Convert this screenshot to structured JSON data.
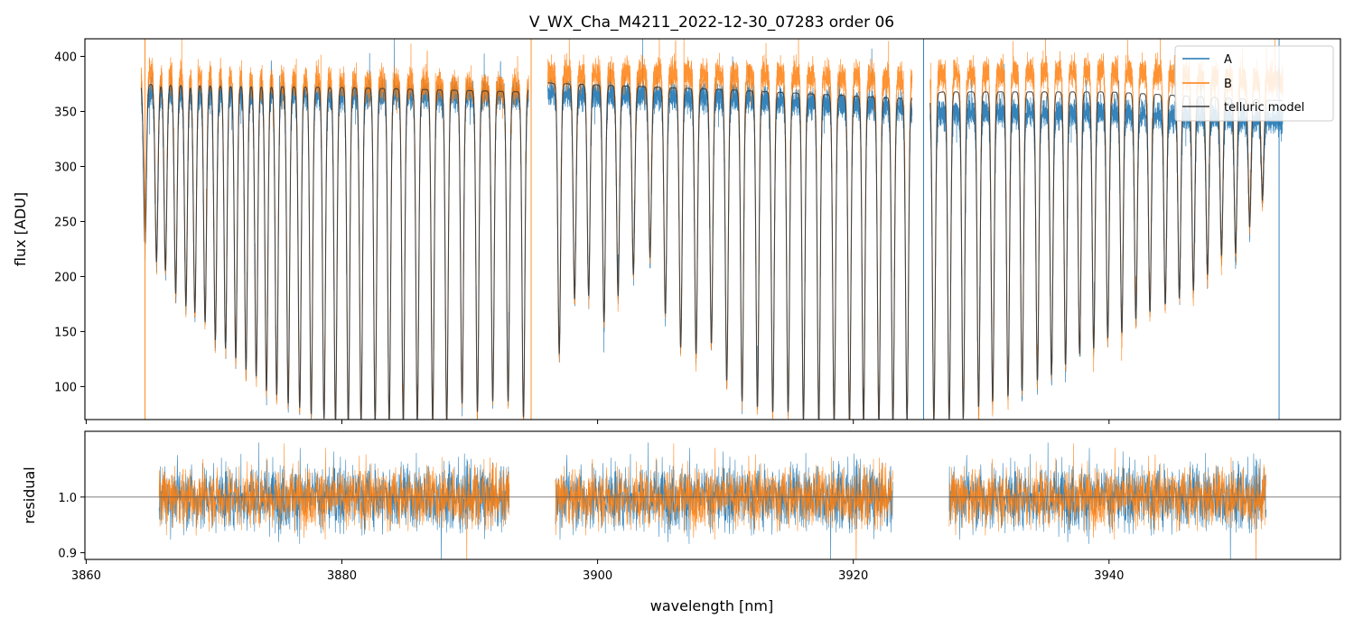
{
  "chart_data": [
    {
      "type": "line",
      "panel": "top",
      "title": "V_WX_Cha_M4211_2022-12-30_07283  order 06",
      "xlabel": "",
      "ylabel": "flux [ADU]",
      "xlim": [
        3859.9,
        3958.1
      ],
      "ylim": [
        70,
        416
      ],
      "yticks": [
        100,
        150,
        200,
        250,
        300,
        350,
        400
      ],
      "legend_position": "top-right",
      "series": [
        {
          "name": "A",
          "color": "#1f77b4",
          "continuum": [
            {
              "x": 3865,
              "y": 368
            },
            {
              "x": 3880,
              "y": 366
            },
            {
              "x": 3894,
              "y": 365
            },
            {
              "x": 3896,
              "y": 368
            },
            {
              "x": 3910,
              "y": 363
            },
            {
              "x": 3924,
              "y": 355
            },
            {
              "x": 3927,
              "y": 350
            },
            {
              "x": 3940,
              "y": 350
            },
            {
              "x": 3953,
              "y": 343
            }
          ]
        },
        {
          "name": "B",
          "color": "#ff7f0e",
          "continuum": [
            {
              "x": 3865,
              "y": 384
            },
            {
              "x": 3880,
              "y": 378
            },
            {
              "x": 3894,
              "y": 372
            },
            {
              "x": 3896,
              "y": 384
            },
            {
              "x": 3910,
              "y": 385
            },
            {
              "x": 3924,
              "y": 380
            },
            {
              "x": 3927,
              "y": 385
            },
            {
              "x": 3940,
              "y": 388
            },
            {
              "x": 3953,
              "y": 378
            }
          ]
        },
        {
          "name": "telluric model",
          "color": "#3a3a3a",
          "continuum": [
            {
              "x": 3865,
              "y": 375
            },
            {
              "x": 3880,
              "y": 372
            },
            {
              "x": 3894,
              "y": 368
            },
            {
              "x": 3896,
              "y": 376
            },
            {
              "x": 3910,
              "y": 370
            },
            {
              "x": 3924,
              "y": 362
            },
            {
              "x": 3927,
              "y": 368
            },
            {
              "x": 3940,
              "y": 368
            },
            {
              "x": 3953,
              "y": 360
            }
          ]
        }
      ],
      "absorption_lines": [
        {
          "x": 3864.6,
          "depth": 240
        },
        {
          "x": 3865.5,
          "depth": 222
        },
        {
          "x": 3866.2,
          "depth": 214
        },
        {
          "x": 3867.0,
          "depth": 192
        },
        {
          "x": 3867.8,
          "depth": 180
        },
        {
          "x": 3868.5,
          "depth": 174
        },
        {
          "x": 3869.3,
          "depth": 165
        },
        {
          "x": 3870.1,
          "depth": 148
        },
        {
          "x": 3870.9,
          "depth": 140
        },
        {
          "x": 3871.7,
          "depth": 131
        },
        {
          "x": 3872.5,
          "depth": 120
        },
        {
          "x": 3873.3,
          "depth": 114
        },
        {
          "x": 3874.1,
          "depth": 100
        },
        {
          "x": 3874.9,
          "depth": 96
        },
        {
          "x": 3875.8,
          "depth": 88
        },
        {
          "x": 3876.7,
          "depth": 84
        },
        {
          "x": 3877.6,
          "depth": 78
        },
        {
          "x": 3878.6,
          "depth": 74
        },
        {
          "x": 3879.5,
          "depth": 70
        },
        {
          "x": 3880.5,
          "depth": 70
        },
        {
          "x": 3881.5,
          "depth": 70
        },
        {
          "x": 3882.6,
          "depth": 70
        },
        {
          "x": 3883.7,
          "depth": 70
        },
        {
          "x": 3884.8,
          "depth": 70
        },
        {
          "x": 3885.9,
          "depth": 70
        },
        {
          "x": 3887.1,
          "depth": 70
        },
        {
          "x": 3888.2,
          "depth": 70
        },
        {
          "x": 3889.4,
          "depth": 88
        },
        {
          "x": 3890.6,
          "depth": 80
        },
        {
          "x": 3891.8,
          "depth": 90
        },
        {
          "x": 3893.0,
          "depth": 90
        },
        {
          "x": 3894.2,
          "depth": 75
        },
        {
          "x": 3897.0,
          "depth": 135
        },
        {
          "x": 3898.2,
          "depth": 187
        },
        {
          "x": 3899.3,
          "depth": 190
        },
        {
          "x": 3900.5,
          "depth": 165
        },
        {
          "x": 3901.6,
          "depth": 190
        },
        {
          "x": 3902.8,
          "depth": 210
        },
        {
          "x": 3904.1,
          "depth": 226
        },
        {
          "x": 3905.3,
          "depth": 173
        },
        {
          "x": 3906.5,
          "depth": 141
        },
        {
          "x": 3907.7,
          "depth": 135
        },
        {
          "x": 3908.9,
          "depth": 145
        },
        {
          "x": 3910.1,
          "depth": 110
        },
        {
          "x": 3911.3,
          "depth": 90
        },
        {
          "x": 3912.5,
          "depth": 85
        },
        {
          "x": 3913.7,
          "depth": 80
        },
        {
          "x": 3914.9,
          "depth": 80
        },
        {
          "x": 3916.1,
          "depth": 72
        },
        {
          "x": 3917.3,
          "depth": 70
        },
        {
          "x": 3918.5,
          "depth": 70
        },
        {
          "x": 3919.7,
          "depth": 70
        },
        {
          "x": 3920.8,
          "depth": 70
        },
        {
          "x": 3922.0,
          "depth": 70
        },
        {
          "x": 3923.1,
          "depth": 70
        },
        {
          "x": 3924.2,
          "depth": 72
        },
        {
          "x": 3926.3,
          "depth": 72
        },
        {
          "x": 3927.5,
          "depth": 72
        },
        {
          "x": 3928.6,
          "depth": 74
        },
        {
          "x": 3929.8,
          "depth": 85
        },
        {
          "x": 3930.9,
          "depth": 90
        },
        {
          "x": 3932.1,
          "depth": 95
        },
        {
          "x": 3933.2,
          "depth": 100
        },
        {
          "x": 3934.4,
          "depth": 110
        },
        {
          "x": 3935.5,
          "depth": 115
        },
        {
          "x": 3936.6,
          "depth": 125
        },
        {
          "x": 3937.7,
          "depth": 135
        },
        {
          "x": 3938.8,
          "depth": 140
        },
        {
          "x": 3939.9,
          "depth": 150
        },
        {
          "x": 3941.0,
          "depth": 155
        },
        {
          "x": 3942.1,
          "depth": 168
        },
        {
          "x": 3943.2,
          "depth": 175
        },
        {
          "x": 3944.4,
          "depth": 182
        },
        {
          "x": 3945.5,
          "depth": 188
        },
        {
          "x": 3946.6,
          "depth": 195
        },
        {
          "x": 3947.7,
          "depth": 210
        },
        {
          "x": 3948.8,
          "depth": 228
        },
        {
          "x": 3949.9,
          "depth": 230
        },
        {
          "x": 3951.0,
          "depth": 255
        },
        {
          "x": 3952.0,
          "depth": 280
        }
      ]
    },
    {
      "type": "line",
      "panel": "bottom",
      "title": "",
      "xlabel": "wavelength [nm]",
      "ylabel": "residual",
      "xlim": [
        3859.9,
        3958.1
      ],
      "ylim": [
        0.888,
        1.118
      ],
      "xticks": [
        3860,
        3880,
        3900,
        3920,
        3940
      ],
      "yticks": [
        0.9,
        1.0
      ],
      "reference_line": 1.0,
      "segments": [
        [
          3865.7,
          3893.1
        ],
        [
          3896.7,
          3923.1
        ],
        [
          3927.5,
          3952.3
        ]
      ],
      "noise_std": {
        "A": 0.042,
        "B": 0.038
      },
      "series": [
        {
          "name": "A",
          "color": "#1f77b4"
        },
        {
          "name": "B",
          "color": "#ff7f0e"
        }
      ]
    }
  ],
  "tick_labels": {
    "x": [
      "3860",
      "3880",
      "3900",
      "3920",
      "3940"
    ],
    "top_y": [
      "100",
      "150",
      "200",
      "250",
      "300",
      "350",
      "400"
    ],
    "bottom_y": [
      "0.9",
      "1.0"
    ]
  }
}
